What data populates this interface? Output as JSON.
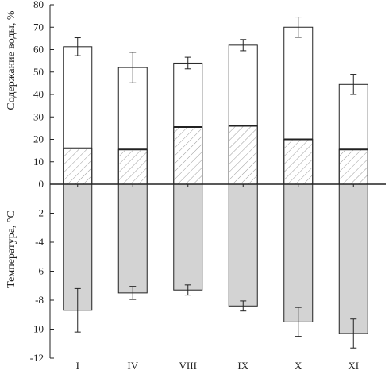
{
  "chart_data": {
    "type": "bar",
    "title": "",
    "categories": [
      "I",
      "IV",
      "VIII",
      "IX",
      "X",
      "XI"
    ],
    "upper_axis": {
      "ylabel": "Содержание воды, %",
      "ylim": [
        0,
        80
      ],
      "ticks": [
        "0",
        "10",
        "20",
        "30",
        "40",
        "50",
        "60",
        "70",
        "80"
      ]
    },
    "lower_axis": {
      "ylabel": "Температура, °C",
      "ylim": [
        -12,
        0
      ],
      "ticks": [
        "-12",
        "-10",
        "-8",
        "-6",
        "-4",
        "-2",
        ""
      ]
    },
    "series": [
      {
        "key": "lower_segment",
        "pattern": "hatched",
        "values": [
          16,
          15.5,
          25.5,
          26,
          20,
          15.5
        ]
      },
      {
        "key": "total",
        "pattern": "white",
        "values": [
          61.3,
          52,
          54,
          62,
          70,
          44.5
        ],
        "error": [
          4.0,
          6.8,
          2.6,
          2.5,
          4.5,
          4.5
        ]
      },
      {
        "key": "temperature",
        "pattern": "grey",
        "values": [
          -8.7,
          -7.5,
          -7.3,
          -8.4,
          -9.5,
          -10.3
        ],
        "error": [
          1.5,
          0.45,
          0.35,
          0.35,
          1.0,
          1.0
        ]
      }
    ],
    "colors": {
      "temperature_fill": "#d3d3d3",
      "hatch": "#9a9a9a",
      "stroke": "#222222"
    },
    "grid": false
  }
}
